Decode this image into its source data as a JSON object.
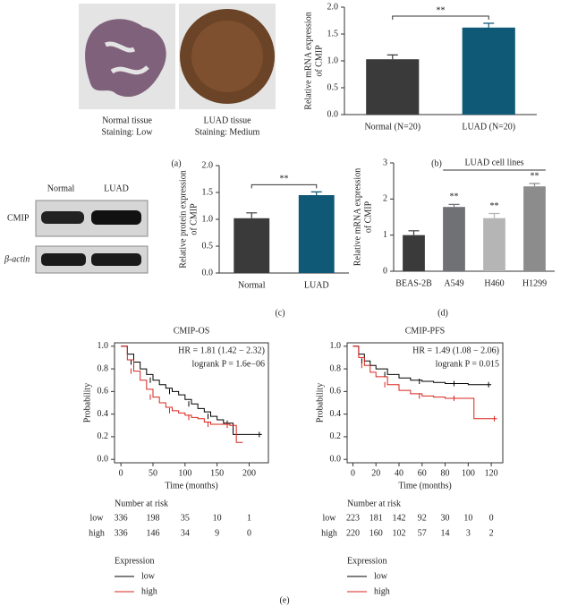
{
  "panel_labels": [
    "(a)",
    "(b)",
    "(c)",
    "(d)",
    "(e)"
  ],
  "tissue": [
    {
      "name": "Normal tissue",
      "staining": "Staining: Low"
    },
    {
      "name": "LUAD tissue",
      "staining": "Staining: Medium"
    }
  ],
  "blot": {
    "columns": [
      "Normal",
      "LUAD"
    ],
    "rows": [
      "CMIP",
      "β-actin"
    ]
  },
  "chart_data": [
    {
      "type": "bar",
      "ylabel": [
        "Relative mRNA expression",
        "of CMIP"
      ],
      "categories": [
        "Normal (N=20)",
        "LUAD (N=20)"
      ],
      "values": [
        1.03,
        1.62
      ],
      "errors": [
        0.08,
        0.08
      ],
      "colors": [
        "#3a3a3a",
        "#0f5876"
      ],
      "ylim": [
        0,
        2
      ],
      "yticks": [
        {
          "value": 0,
          "label": "0.0"
        },
        0.5,
        {
          "value": 1,
          "label": "1.0"
        },
        1.5,
        {
          "value": 2,
          "label": "2.0"
        }
      ],
      "significance": "**"
    },
    {
      "type": "bar",
      "ylabel": [
        "Relative protein expression",
        "of CMIP"
      ],
      "categories": [
        "Normal",
        "LUAD"
      ],
      "values": [
        1.02,
        1.45
      ],
      "errors": [
        0.1,
        0.06
      ],
      "colors": [
        "#3a3a3a",
        "#0f5876"
      ],
      "ylim": [
        0,
        2
      ],
      "yticks": [
        {
          "value": 0,
          "label": "0.0"
        },
        0.5,
        {
          "value": 1,
          "label": "1.0"
        },
        1.5,
        {
          "value": 2,
          "label": "2.0"
        }
      ],
      "significance": "**"
    },
    {
      "type": "bar",
      "ylabel": [
        "Relative mRNA expression",
        "of CMIP"
      ],
      "categories": [
        "BEAS-2B",
        "A549",
        "H460",
        "H1299"
      ],
      "values": [
        1.0,
        1.78,
        1.47,
        2.35
      ],
      "errors": [
        0.12,
        0.07,
        0.13,
        0.08
      ],
      "colors": [
        "#3a3a3a",
        "#6f7175",
        "#b5b5b5",
        "#8c8c8c"
      ],
      "ylim": [
        0,
        3
      ],
      "yticks": [
        0,
        1,
        2,
        3
      ],
      "value_annotations": [
        null,
        "**",
        "**",
        "**"
      ],
      "group_label": "LUAD cell lines"
    },
    {
      "type": "line",
      "title": "CMIP-OS",
      "annotations": [
        "HR = 1.81 (1.42 − 2.32)",
        "logrank P = 1.6e−06"
      ],
      "xlabel": "Time (months)",
      "ylabel": "Probability",
      "xlim": [
        -10,
        230
      ],
      "xticks": [
        0,
        50,
        100,
        150,
        200
      ],
      "ylim": [
        -0.03,
        1.03
      ],
      "yticks": [
        {
          "value": 0,
          "label": "0.0"
        },
        0.2,
        0.4,
        0.6,
        0.8,
        {
          "value": 1,
          "label": "1.0"
        }
      ],
      "series": [
        {
          "name": "low",
          "color": "#000000",
          "x": [
            0,
            10,
            20,
            30,
            40,
            50,
            60,
            70,
            80,
            90,
            100,
            110,
            120,
            130,
            140,
            150,
            160,
            170,
            175,
            180,
            220
          ],
          "values": [
            1,
            0.93,
            0.86,
            0.8,
            0.75,
            0.7,
            0.66,
            0.63,
            0.6,
            0.57,
            0.53,
            0.49,
            0.45,
            0.42,
            0.38,
            0.35,
            0.32,
            0.32,
            0.22,
            0.22,
            0.22
          ]
        },
        {
          "name": "high",
          "color": "#d7261e",
          "x": [
            0,
            10,
            20,
            30,
            40,
            50,
            60,
            70,
            80,
            90,
            100,
            110,
            120,
            130,
            140,
            150,
            160,
            170,
            180,
            190
          ],
          "values": [
            1,
            0.88,
            0.78,
            0.7,
            0.62,
            0.55,
            0.5,
            0.46,
            0.43,
            0.41,
            0.39,
            0.37,
            0.36,
            0.33,
            0.31,
            0.31,
            0.31,
            0.3,
            0.15,
            0.15
          ]
        }
      ],
      "risk_table": {
        "title": "Number at risk",
        "rows": [
          [
            336,
            198,
            35,
            10,
            1
          ],
          [
            336,
            146,
            34,
            9,
            0
          ]
        ]
      },
      "legend_title": "Expression"
    },
    {
      "type": "line",
      "title": "CMIP-PFS",
      "annotations": [
        "HR = 1.49 (1.08 − 2.06)",
        "logrank P = 0.015"
      ],
      "xlabel": "Time (months)",
      "ylabel": "Probability",
      "xlim": [
        -5,
        130
      ],
      "xticks": [
        0,
        20,
        40,
        60,
        80,
        100,
        120
      ],
      "ylim": [
        -0.03,
        1.03
      ],
      "yticks": [
        {
          "value": 0,
          "label": "0.0"
        },
        0.2,
        0.4,
        0.6,
        0.8,
        {
          "value": 1,
          "label": "1.0"
        }
      ],
      "series": [
        {
          "name": "low",
          "color": "#000000",
          "x": [
            0,
            5,
            10,
            15,
            20,
            30,
            40,
            50,
            60,
            70,
            80,
            90,
            100,
            110,
            120
          ],
          "values": [
            1,
            0.93,
            0.87,
            0.83,
            0.8,
            0.75,
            0.72,
            0.7,
            0.69,
            0.68,
            0.67,
            0.67,
            0.66,
            0.66,
            0.66
          ]
        },
        {
          "name": "high",
          "color": "#d7261e",
          "x": [
            0,
            5,
            10,
            15,
            20,
            30,
            40,
            50,
            60,
            70,
            80,
            90,
            100,
            105,
            125
          ],
          "values": [
            1,
            0.9,
            0.83,
            0.77,
            0.73,
            0.66,
            0.61,
            0.58,
            0.56,
            0.55,
            0.54,
            0.54,
            0.54,
            0.36,
            0.36
          ]
        }
      ],
      "risk_table": {
        "title": "Number at risk",
        "rows": [
          [
            223,
            181,
            142,
            92,
            30,
            10,
            0
          ],
          [
            220,
            160,
            102,
            57,
            14,
            3,
            2
          ]
        ]
      },
      "legend_title": "Expression"
    }
  ]
}
